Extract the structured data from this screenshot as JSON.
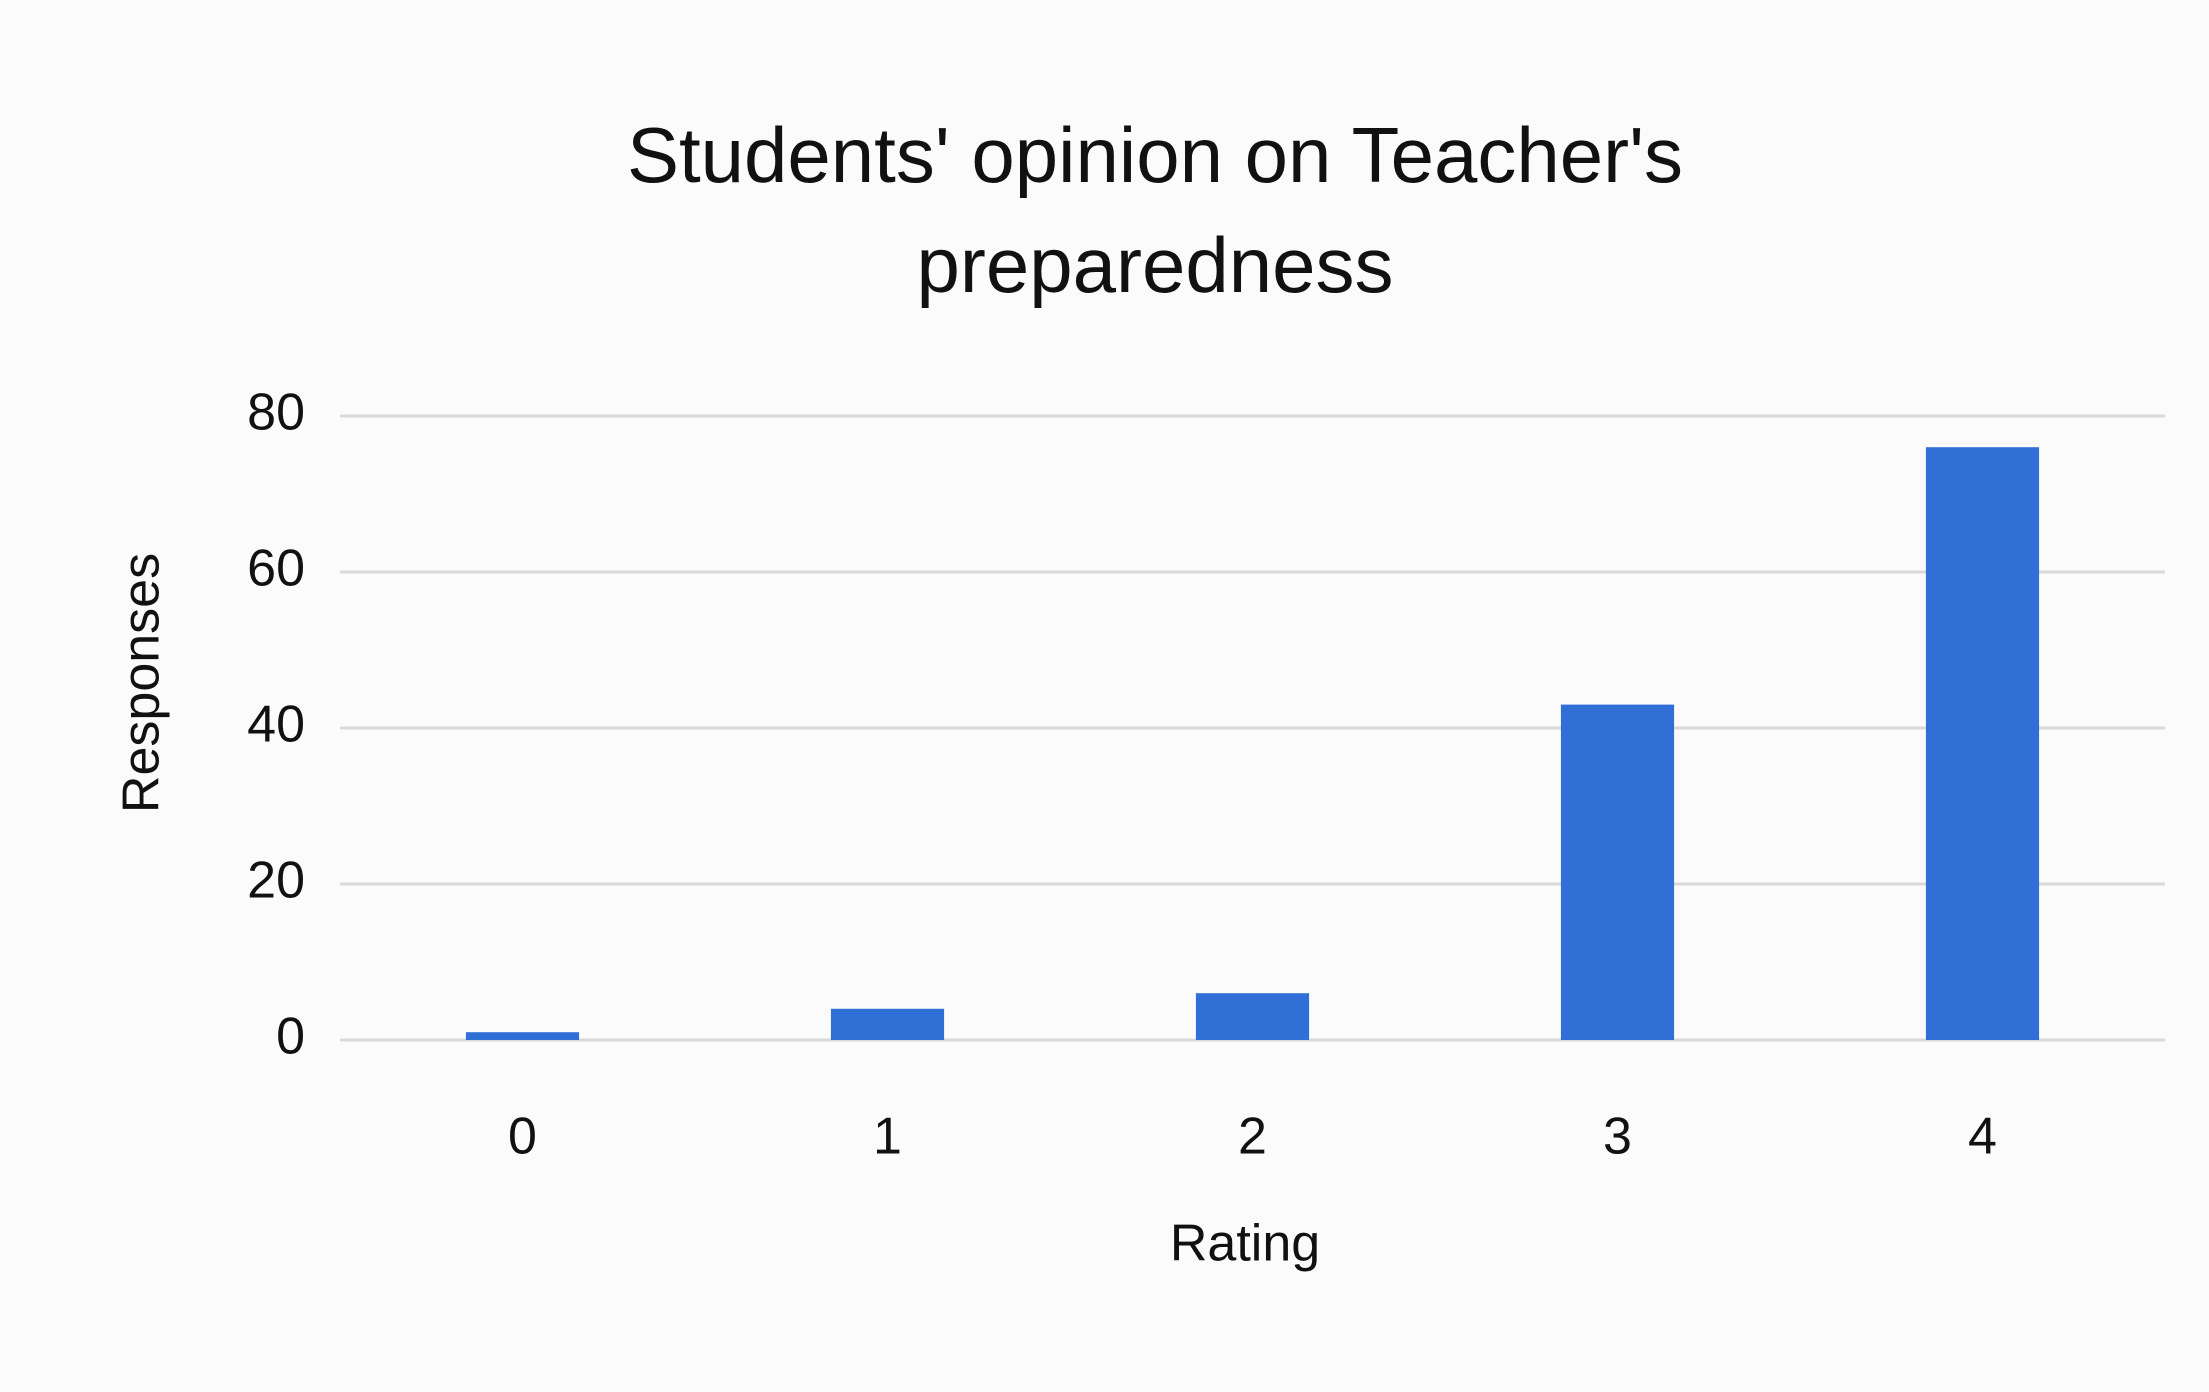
{
  "chart_data": {
    "type": "bar",
    "title": "Students' opinion on Teacher's preparedness",
    "x_label": "Rating",
    "y_label": "Responses",
    "categories": [
      "0",
      "1",
      "2",
      "3",
      "4"
    ],
    "values": [
      1,
      4,
      6,
      43,
      76
    ],
    "color": "#2f6fd6",
    "ylim": [
      0,
      80
    ],
    "yticks": [
      0,
      20,
      40,
      60,
      80
    ],
    "grid": true
  }
}
